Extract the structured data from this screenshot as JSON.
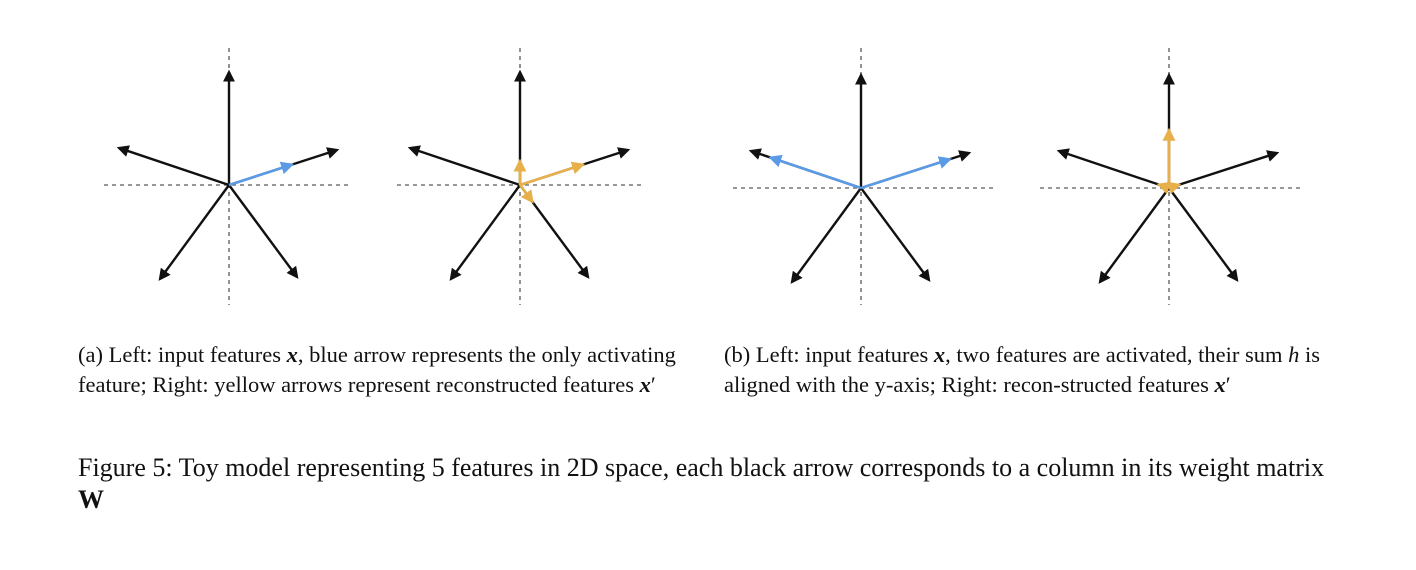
{
  "colors": {
    "feature_arrow": "#111111",
    "blue_arrow": "#5b9be6",
    "yellow_arrow": "#e8b04b",
    "axis": "#777777"
  },
  "panels": [
    {
      "name": "panel-a-left",
      "highlights": [
        {
          "color": "blue",
          "feature": 2,
          "length": 0.58
        }
      ]
    },
    {
      "name": "panel-a-right",
      "highlights": [
        {
          "color": "yellow",
          "feature": 2,
          "length": 0.58
        },
        {
          "color": "yellow",
          "feature": 0,
          "length": 0.21
        },
        {
          "color": "yellow",
          "feature": 4,
          "length": 0.18
        }
      ]
    },
    {
      "name": "panel-b-left",
      "highlights": [
        {
          "color": "blue",
          "feature": 1,
          "length": 0.82
        },
        {
          "color": "blue",
          "feature": 2,
          "length": 0.82
        }
      ]
    },
    {
      "name": "panel-b-right",
      "highlights": [
        {
          "color": "yellow",
          "feature": 0,
          "length": 0.51
        },
        {
          "color": "yellow",
          "feature": 1,
          "length": 0.09
        },
        {
          "color": "yellow",
          "feature": 2,
          "length": 0.09
        }
      ]
    }
  ],
  "captions": {
    "a": {
      "prefix": "(a) Left: input features ",
      "var_x": "x",
      "mid": ", blue arrow represents the only activating feature; Right: yellow arrows represent reconstructed features ",
      "var_x2": "x",
      "prime": "′"
    },
    "b": {
      "prefix": "(b) Left: input features ",
      "var_x": "x",
      "mid1": ", two features are activated, their sum ",
      "var_h": "h",
      "mid2": " is aligned with the y-axis; Right: recon-structed features ",
      "var_x2": "x",
      "prime": "′"
    },
    "main": {
      "text": "Figure 5: Toy model representing 5 features in 2D space, each black arrow corresponds to a column in its weight matrix ",
      "matrix": "W"
    }
  }
}
